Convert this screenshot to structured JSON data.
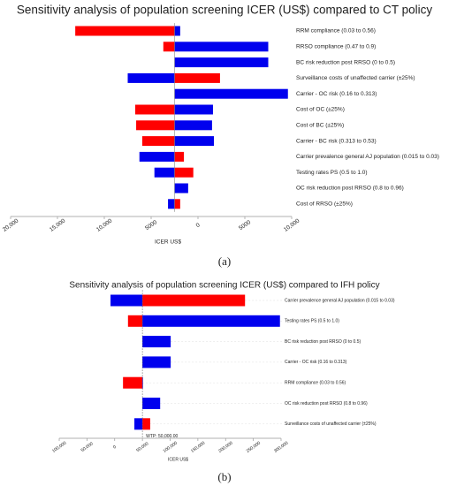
{
  "chart_data": [
    {
      "type": "tornado",
      "title": "Sensitivity analysis of population screening ICER (US$) compared to CT policy",
      "caption": "(a)",
      "xlabel": "ICER US$",
      "base_value": -2500,
      "categories": [
        "RRM compliance (0.03 to 0.56)",
        "RRSO compliance (0.47 to 0.9)",
        "BC risk reduction post RRSO (0 to 0.5)",
        "Surveillance costs of unaffected carrier (±25%)",
        "Carrier - OC risk (0.16 to 0.313)",
        "Cost of OC (±25%)",
        "Cost of BC (±25%)",
        "Carrier - BC risk (0.313 to 0.53)",
        "Carrier prevalence general AJ population (0.015 to 0.03)",
        "Testing rates PS (0.5 to 1.0)",
        "OC risk reduction post RRSO (0.8 to 0.96)",
        "Cost of RRSO (±25%)"
      ],
      "series": [
        {
          "color": "#ff0000",
          "values": [
            -13100,
            -3700,
            null,
            2350,
            null,
            -6700,
            -6600,
            -5950,
            -1500,
            -500,
            null,
            -1900
          ]
        },
        {
          "color": "#0000ee",
          "values": [
            -1900,
            7500,
            7500,
            -7500,
            9600,
            1600,
            1500,
            1700,
            -6250,
            -4650,
            -1050,
            -3200
          ]
        }
      ],
      "xlim": [
        -20000,
        10000
      ],
      "xticks": [
        {
          "value": -20000,
          "label": "20,000"
        },
        {
          "value": -15000,
          "label": "15,000"
        },
        {
          "value": -10000,
          "label": "10,000"
        },
        {
          "value": -5000,
          "label": "5000"
        },
        0,
        5000,
        {
          "value": 10000,
          "label": "10,000"
        }
      ]
    },
    {
      "type": "tornado",
      "title": "Sensitivity analysis of population screening ICER (US$) compared to IFH policy",
      "caption": "(b)",
      "xlabel": "ICER US$",
      "base_value": 50000,
      "annotation": "WTP: 50,000.00",
      "categories": [
        "Carrier prevalence general AJ population (0.015 to 0.03)",
        "Testing rates PS (0.5 to 1.0)",
        "BC risk reduction post RRSO (0 to 0.5)",
        "Carrier - OC risk (0.16 to 0.313)",
        "RRM compliance (0.03 to 0.56)",
        "OC risk reduction post RRSO (0.8 to 0.96)",
        "Surveillance costs of unaffected carrier (±25%)"
      ],
      "series": [
        {
          "color": "#ff0000",
          "values": [
            235000,
            24000,
            null,
            null,
            15000,
            null,
            64000
          ]
        },
        {
          "color": "#0000ee",
          "values": [
            -7500,
            298000,
            101000,
            101000,
            51000,
            82000,
            35500
          ]
        }
      ],
      "xlim": [
        -100000,
        300000
      ],
      "xticks": [
        {
          "value": -100000,
          "label": "100,000"
        },
        {
          "value": -50000,
          "label": "50,000"
        },
        0,
        {
          "value": 50000,
          "label": "50,000"
        },
        {
          "value": 100000,
          "label": "100,000"
        },
        {
          "value": 150000,
          "label": "150,000"
        },
        {
          "value": 200000,
          "label": "200,000"
        },
        {
          "value": 250000,
          "label": "250,000"
        },
        {
          "value": 300000,
          "label": "300,000"
        }
      ]
    }
  ]
}
